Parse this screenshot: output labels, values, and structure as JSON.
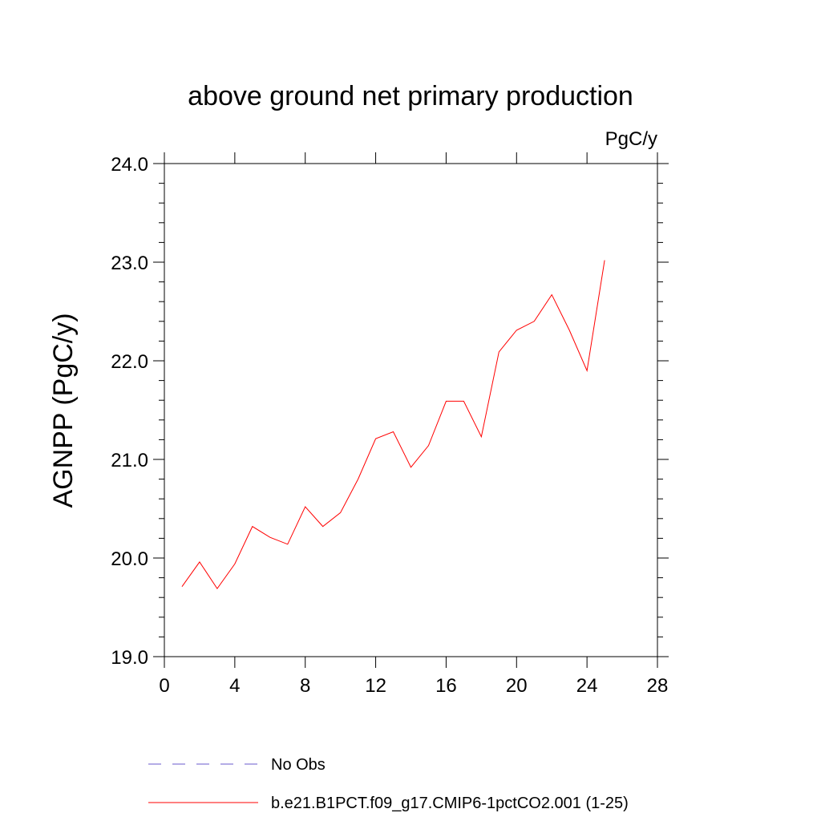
{
  "chart_data": {
    "type": "line",
    "title": "above ground net primary production",
    "units": "PgC/y",
    "ylabel": "AGNPP  (PgC/y)",
    "xlabel": "",
    "xlim": [
      0,
      28
    ],
    "ylim": [
      19.0,
      24.0
    ],
    "x_ticks": [
      "0",
      "4",
      "8",
      "12",
      "16",
      "20",
      "24",
      "28"
    ],
    "y_ticks": [
      "19.0",
      "20.0",
      "21.0",
      "22.0",
      "23.0",
      "24.0"
    ],
    "grid": false,
    "legend_position": "bottom",
    "series": [
      {
        "name": "No Obs",
        "color": "#6a5acd",
        "style": "dashed",
        "x": [],
        "values": []
      },
      {
        "name": "b.e21.B1PCT.f09_g17.CMIP6-1pctCO2.001 (1-25)",
        "color": "#ff0000",
        "style": "solid",
        "x": [
          1,
          2,
          3,
          4,
          5,
          6,
          7,
          8,
          9,
          10,
          11,
          12,
          13,
          14,
          15,
          16,
          17,
          18,
          19,
          20,
          21,
          22,
          23,
          24,
          25
        ],
        "values": [
          19.71,
          19.96,
          19.69,
          19.94,
          20.32,
          20.21,
          20.14,
          20.52,
          20.32,
          20.46,
          20.8,
          21.21,
          21.28,
          20.92,
          21.14,
          21.59,
          21.59,
          21.23,
          22.09,
          22.31,
          22.4,
          22.67,
          22.31,
          21.9,
          23.02
        ]
      }
    ]
  }
}
